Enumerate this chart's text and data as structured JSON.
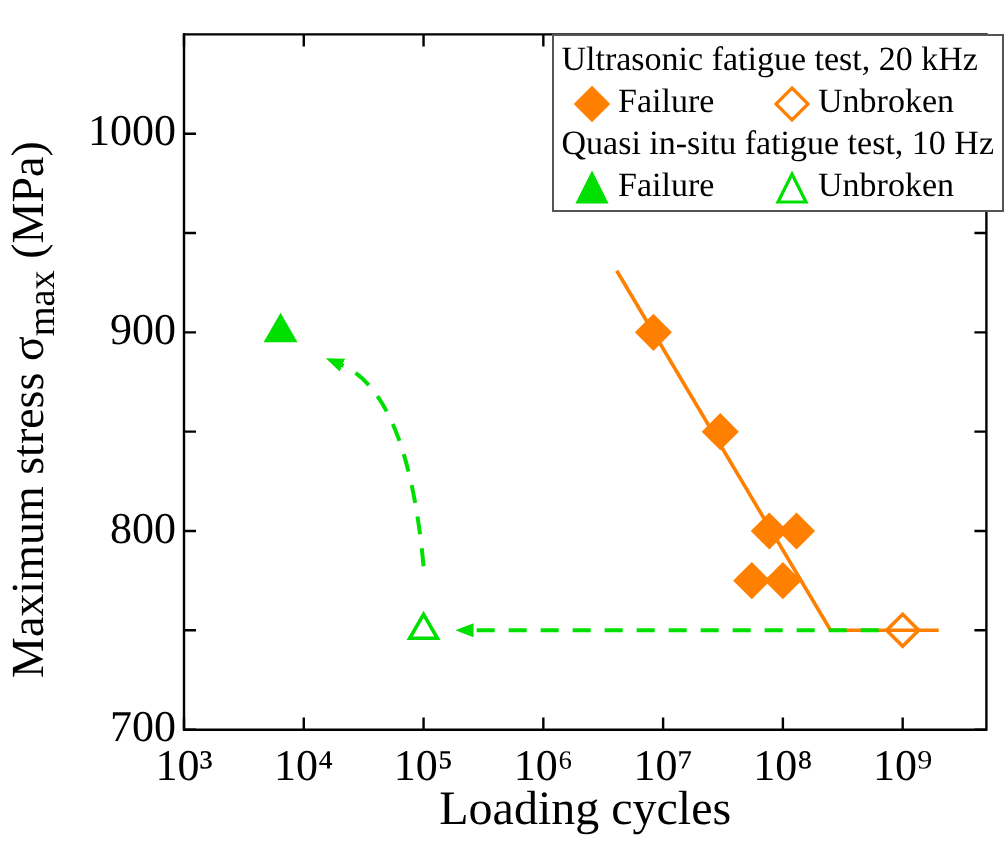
{
  "chart_data": {
    "type": "scatter",
    "xlabel": "Loading cycles",
    "ylabel": "Maximum stress σ$_{max}$ (MPa)",
    "legend_title": "Ultrasonic fatigue test, 20 kHz",
    "annotations": [
      "Quasi in-situ fatigue test, 10 Hz"
    ],
    "log": "x",
    "xlim": [
      1000,
      5000000000
    ],
    "xticks": [
      {
        "value": 1000,
        "label": "10³"
      },
      {
        "value": 10000,
        "label": "10⁴"
      },
      {
        "value": 100000,
        "label": "10⁵"
      },
      {
        "value": 1000000,
        "label": "10⁶"
      },
      {
        "value": 10000000,
        "label": "10⁷"
      },
      {
        "value": 100000000,
        "label": "10⁸"
      },
      {
        "value": 1000000000,
        "label": "10⁹"
      }
    ],
    "ylim": [
      700,
      1050
    ],
    "yticks": [
      700,
      {
        "value": 750,
        "label": null
      },
      800,
      {
        "value": 850,
        "label": null
      },
      900,
      {
        "value": 950,
        "label": null
      },
      1000
    ],
    "grid": false,
    "legend": "top right",
    "series": [
      {
        "name": "Failure",
        "type": "scatter",
        "marker": "diamond",
        "color": "#ff7f00",
        "x": [
          8300000,
          30000000,
          77000000,
          130000000,
          55000000,
          100000000
        ],
        "values": [
          900,
          850,
          800,
          800,
          775,
          775
        ]
      },
      {
        "name": "Unbroken",
        "type": "scatter",
        "marker": "diamond",
        "color": "#ff7f00",
        "x": [
          1000000000
        ],
        "values": [
          750
        ]
      },
      {
        "name": "Failure",
        "type": "scatter",
        "marker": "triangle",
        "color": "#00e000",
        "x": [
          6400
        ],
        "values": [
          900
        ]
      },
      {
        "name": "Unbroken",
        "type": "scatter",
        "marker": "triangle",
        "color": "#00e000",
        "x": [
          100000
        ],
        "values": [
          750
        ]
      },
      {
        "type": "line",
        "marker": "none",
        "line_style": "solid",
        "color": "#ff7f00",
        "x": [
          4100000,
          250000000,
          2000000000
        ],
        "values": [
          931,
          750,
          750
        ]
      }
    ]
  }
}
